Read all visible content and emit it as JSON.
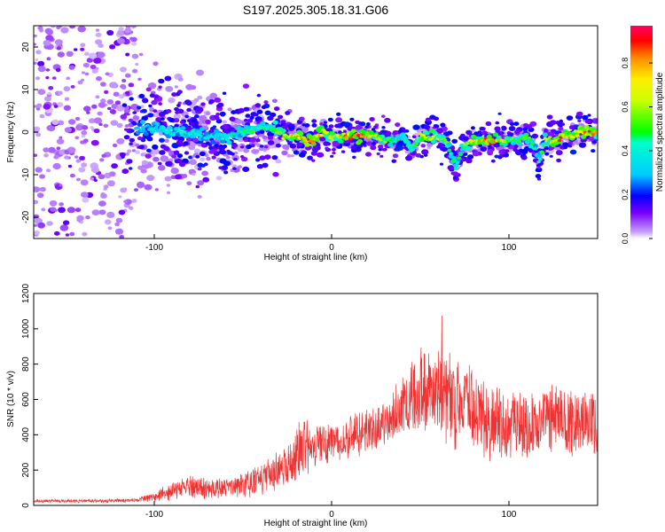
{
  "figure_title": "S197.2025.305.18.31.G06",
  "chart_data": [
    {
      "type": "heatmap",
      "title": "S197.2025.305.18.31.G06",
      "xlabel": "Height of straight line (km)",
      "ylabel": "Frequency (Hz)",
      "xlim": [
        -168,
        150
      ],
      "ylim": [
        -25,
        25
      ],
      "xticks": [
        -100,
        0,
        100
      ],
      "yticks": [
        -20,
        -10,
        0,
        10,
        20
      ],
      "colorbar": {
        "label": "Normalized spectral amplitude",
        "range": [
          0,
          0.97
        ],
        "ticks": [
          "0.0",
          "0.2",
          "0.4",
          "0.6",
          "0.8"
        ],
        "tick_values": [
          0.0,
          0.2,
          0.4,
          0.6,
          0.8
        ],
        "colormap": "rainbow"
      },
      "ridge": {
        "x": [
          -110,
          -100,
          -90,
          -80,
          -70,
          -60,
          -50,
          -40,
          -35,
          -30,
          -25,
          -20,
          -15,
          -10,
          -5,
          0,
          5,
          10,
          15,
          20,
          25,
          30,
          35,
          40,
          45,
          50,
          55,
          60,
          65,
          68,
          70,
          72,
          75,
          80,
          85,
          90,
          95,
          100,
          105,
          110,
          115,
          117,
          120,
          125,
          130,
          135,
          140,
          145,
          150
        ],
        "frequency": [
          1,
          1,
          0,
          0,
          -1,
          -1,
          0,
          1,
          1,
          0,
          -1,
          -1,
          -2,
          -2,
          0,
          -1,
          -1,
          -1,
          -1,
          -1,
          -1,
          -2,
          -2,
          -1,
          -4,
          -1,
          -1,
          -1,
          -2,
          -6,
          -8,
          -6,
          -3,
          -2,
          -2,
          -2,
          -2,
          -2,
          -2,
          -1,
          -4,
          -7,
          -2,
          -2,
          -1,
          -1,
          0,
          0,
          0
        ],
        "amplitude": [
          0.35,
          0.4,
          0.45,
          0.45,
          0.4,
          0.45,
          0.5,
          0.55,
          0.5,
          0.6,
          0.75,
          0.8,
          0.9,
          0.85,
          0.8,
          0.75,
          0.8,
          0.9,
          0.95,
          0.85,
          0.75,
          0.6,
          0.5,
          0.45,
          0.55,
          0.7,
          0.75,
          0.7,
          0.6,
          0.5,
          0.45,
          0.5,
          0.6,
          0.75,
          0.85,
          0.9,
          0.8,
          0.6,
          0.55,
          0.6,
          0.5,
          0.45,
          0.6,
          0.8,
          0.9,
          0.75,
          0.85,
          0.9,
          0.8
        ]
      },
      "noise_region_x": [
        -168,
        -110
      ]
    },
    {
      "type": "line",
      "xlabel": "Height of straight line (km)",
      "ylabel": "SNR (10 * v/v)",
      "xlim": [
        -168,
        150
      ],
      "ylim": [
        0,
        1200
      ],
      "xticks": [
        -100,
        0,
        100
      ],
      "yticks": [
        0,
        200,
        400,
        600,
        800,
        1000,
        1200
      ],
      "series": [
        {
          "name": "SNR",
          "color": "#ee3333",
          "envelope_x": [
            -168,
            -130,
            -110,
            -100,
            -90,
            -80,
            -70,
            -60,
            -50,
            -40,
            -30,
            -25,
            -20,
            -15,
            -10,
            -5,
            0,
            10,
            20,
            30,
            40,
            45,
            50,
            55,
            60,
            62,
            65,
            70,
            75,
            80,
            85,
            90,
            95,
            100,
            105,
            110,
            115,
            120,
            125,
            130,
            135,
            140,
            145,
            150
          ],
          "envelope_mean": [
            25,
            25,
            30,
            50,
            80,
            110,
            90,
            100,
            120,
            150,
            200,
            240,
            280,
            330,
            340,
            350,
            360,
            390,
            420,
            470,
            560,
            620,
            660,
            650,
            640,
            700,
            620,
            560,
            580,
            560,
            520,
            500,
            470,
            440,
            470,
            430,
            440,
            470,
            480,
            500,
            460,
            470,
            470,
            440
          ],
          "envelope_amp": [
            10,
            10,
            12,
            30,
            50,
            70,
            60,
            60,
            70,
            90,
            110,
            120,
            160,
            160,
            130,
            120,
            120,
            130,
            140,
            150,
            170,
            220,
            240,
            240,
            260,
            420,
            260,
            300,
            260,
            250,
            230,
            230,
            230,
            200,
            200,
            200,
            190,
            200,
            200,
            210,
            200,
            200,
            190,
            180
          ]
        }
      ]
    }
  ]
}
